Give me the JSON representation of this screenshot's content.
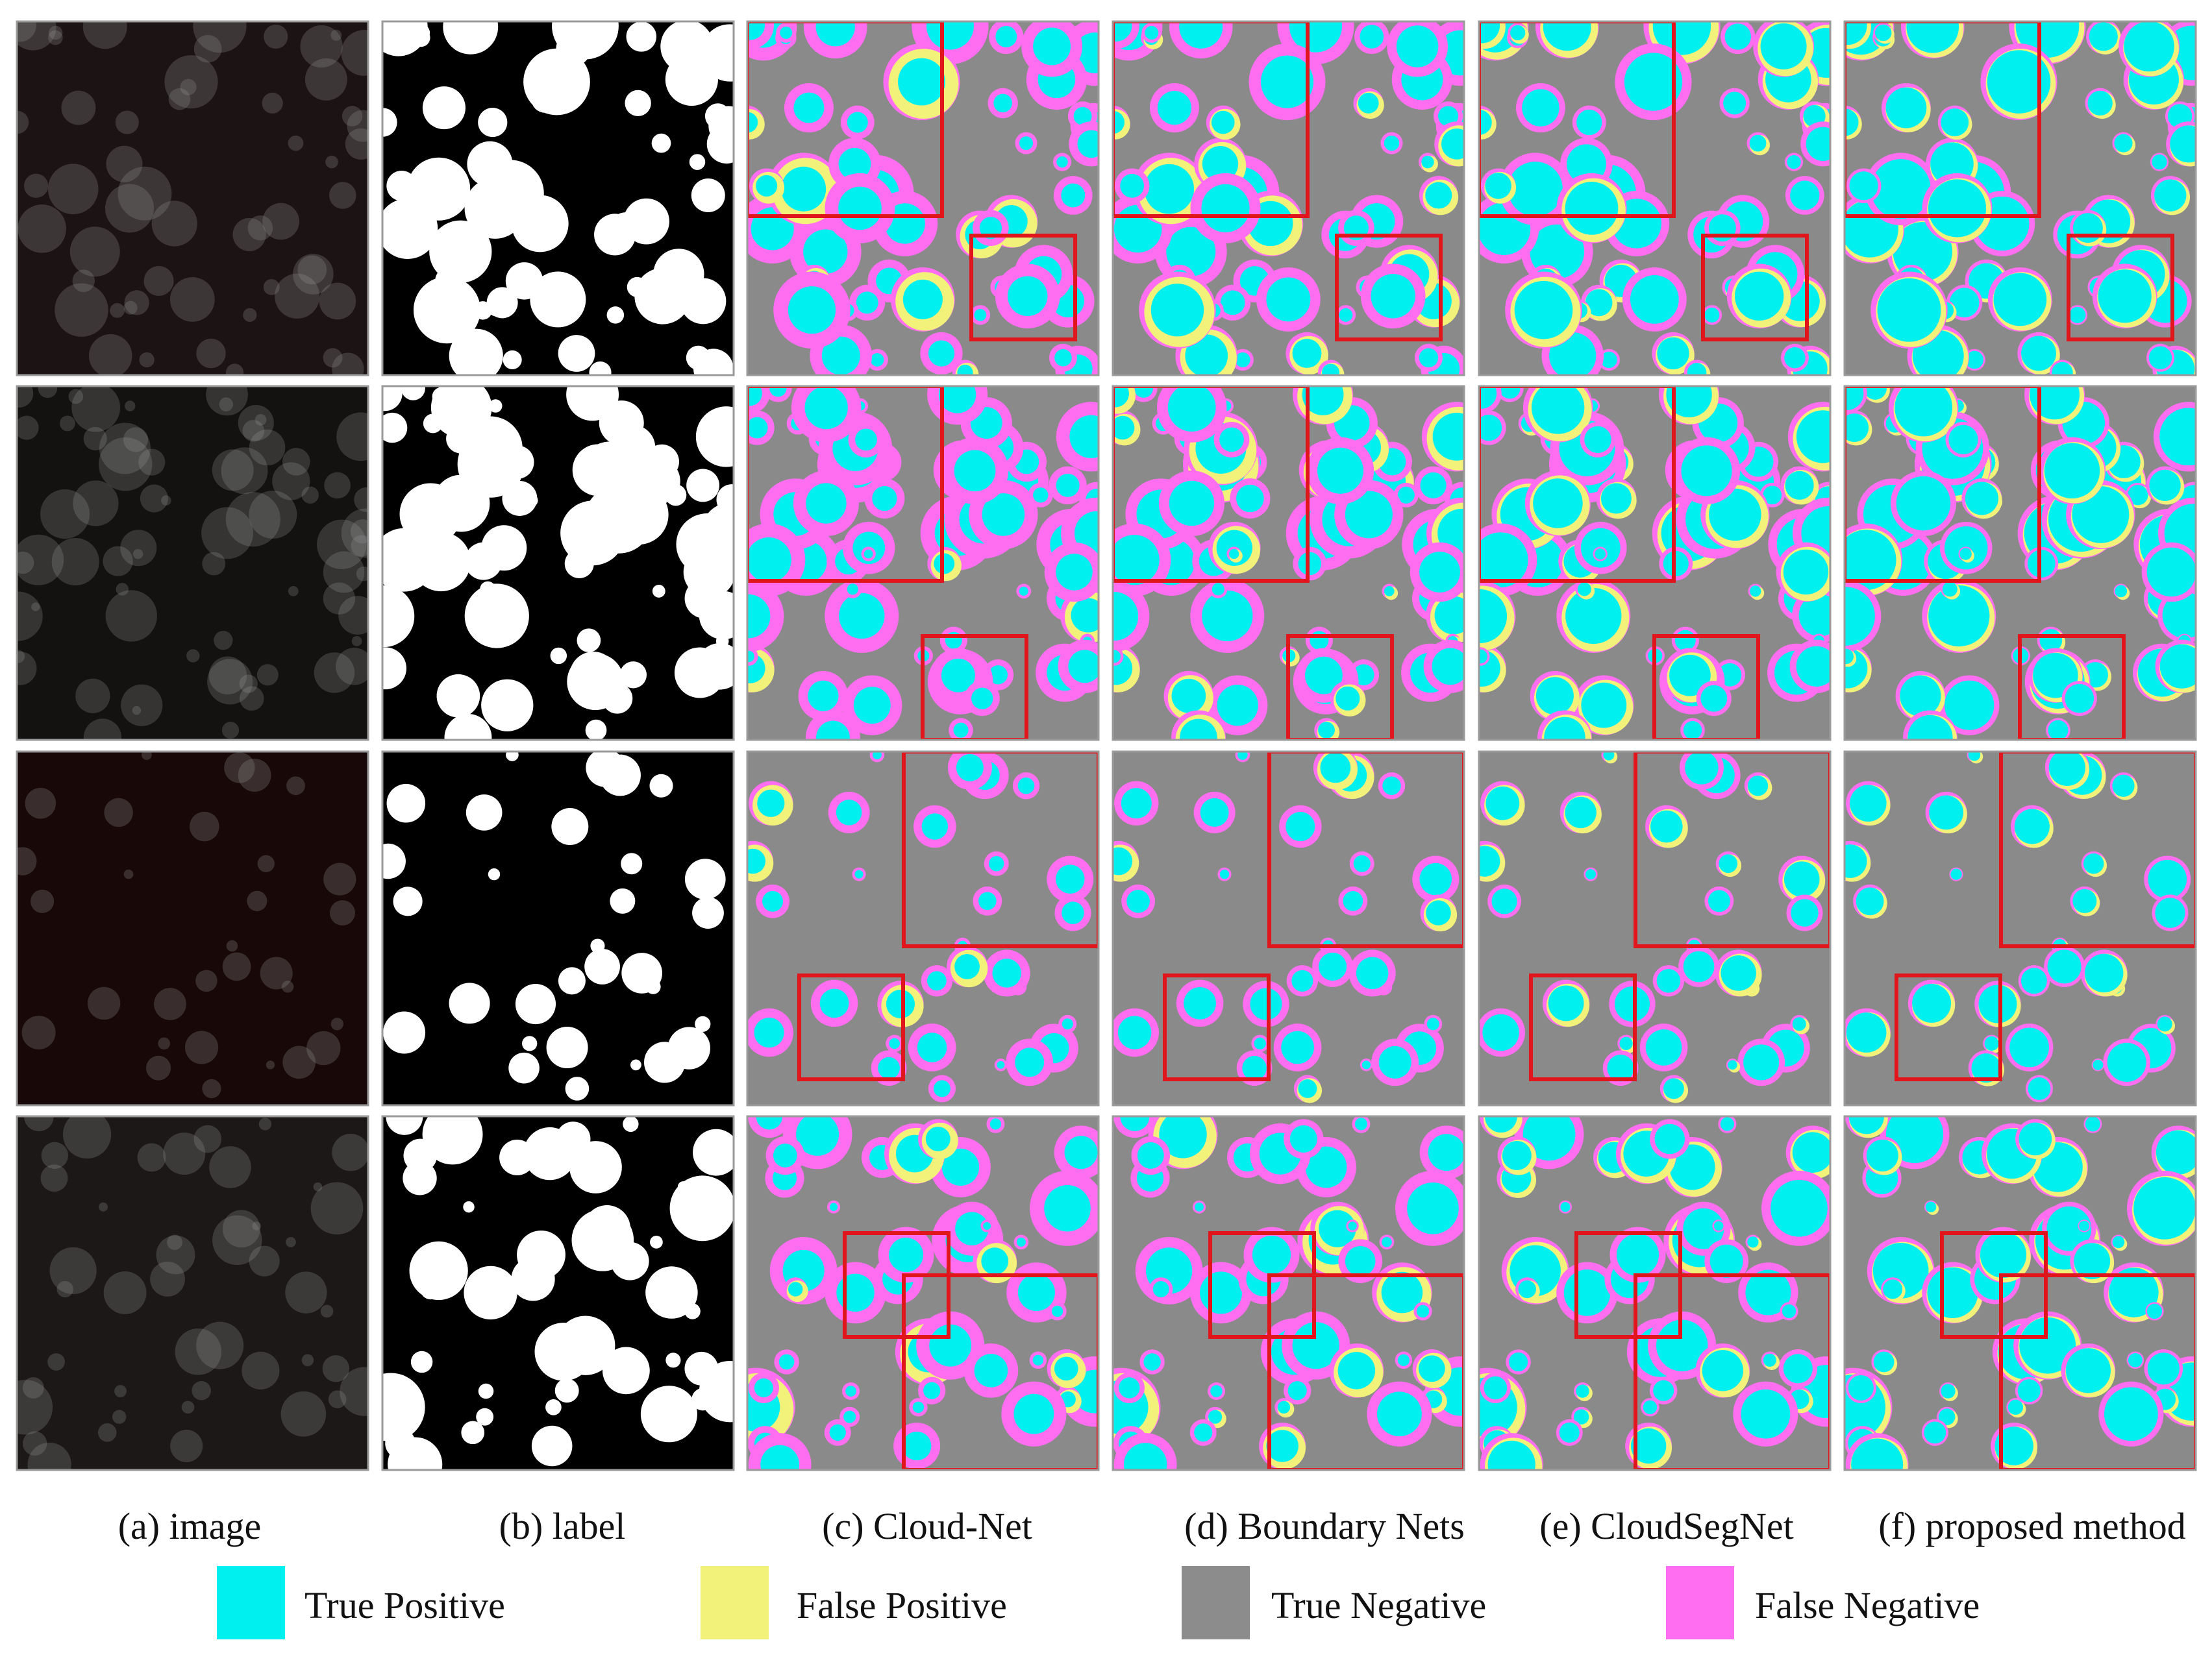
{
  "captions": [
    "(a) image",
    "(b) label",
    "(c) Cloud-Net",
    "(d) Boundary Nets",
    "(e) CloudSegNet",
    "(f) proposed method"
  ],
  "legend": [
    {
      "label": "True Positive"
    },
    {
      "label": "False Positive"
    },
    {
      "label": "True Negative"
    },
    {
      "label": "False Negative"
    }
  ]
}
